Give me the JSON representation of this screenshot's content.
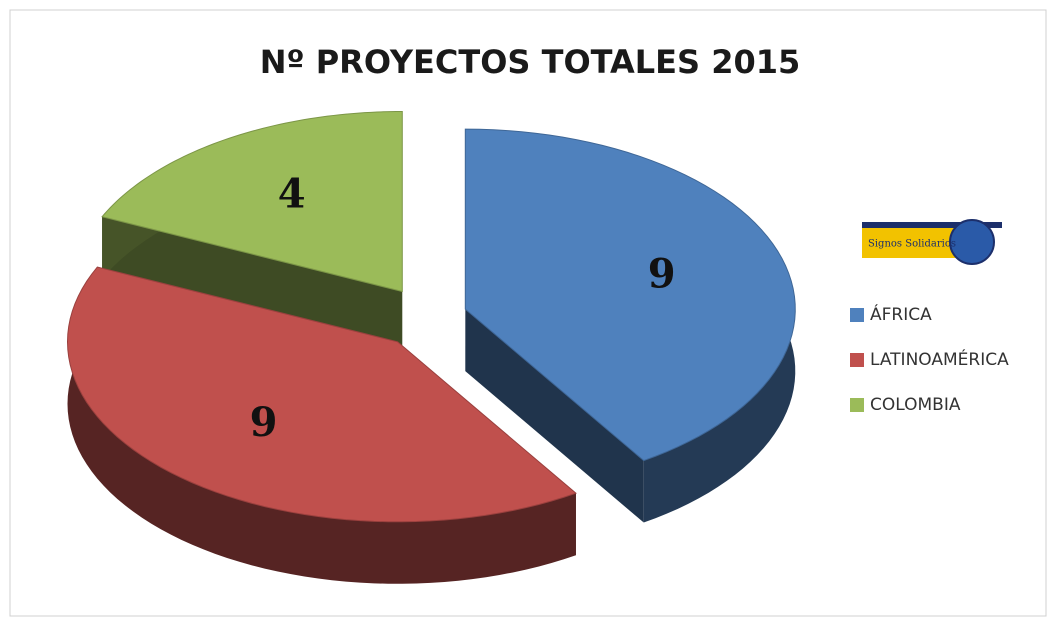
{
  "chart_data": {
    "type": "pie",
    "title": "Nº PROYECTOS TOTALES 2015",
    "categories": [
      "ÁFRICA",
      "LATINOAMÉRICA",
      "COLOMBIA"
    ],
    "values": [
      9,
      9,
      4
    ],
    "colors": [
      "#4f81bd",
      "#c0504d",
      "#9bbb59"
    ],
    "logo_text": "Signos Solidarios",
    "legend": "right"
  }
}
